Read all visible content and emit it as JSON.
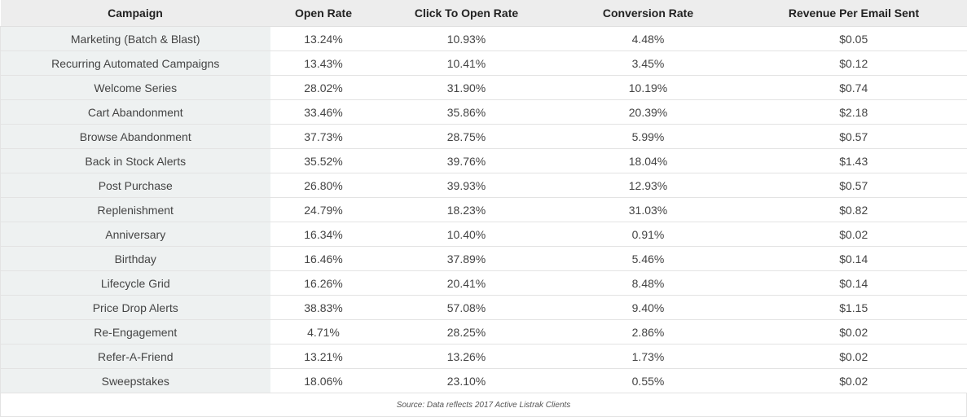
{
  "table": {
    "headers": [
      "Campaign",
      "Open Rate",
      "Click To Open Rate",
      "Conversion Rate",
      "Revenue Per Email Sent"
    ],
    "rows": [
      [
        "Marketing (Batch & Blast)",
        "13.24%",
        "10.93%",
        "4.48%",
        "$0.05"
      ],
      [
        "Recurring Automated Campaigns",
        "13.43%",
        "10.41%",
        "3.45%",
        "$0.12"
      ],
      [
        "Welcome Series",
        "28.02%",
        "31.90%",
        "10.19%",
        "$0.74"
      ],
      [
        "Cart Abandonment",
        "33.46%",
        "35.86%",
        "20.39%",
        "$2.18"
      ],
      [
        "Browse Abandonment",
        "37.73%",
        "28.75%",
        "5.99%",
        "$0.57"
      ],
      [
        "Back in Stock Alerts",
        "35.52%",
        "39.76%",
        "18.04%",
        "$1.43"
      ],
      [
        "Post Purchase",
        "26.80%",
        "39.93%",
        "12.93%",
        "$0.57"
      ],
      [
        "Replenishment",
        "24.79%",
        "18.23%",
        "31.03%",
        "$0.82"
      ],
      [
        "Anniversary",
        "16.34%",
        "10.40%",
        "0.91%",
        "$0.02"
      ],
      [
        "Birthday",
        "16.46%",
        "37.89%",
        "5.46%",
        "$0.14"
      ],
      [
        "Lifecycle Grid",
        "16.26%",
        "20.41%",
        "8.48%",
        "$0.14"
      ],
      [
        "Price Drop Alerts",
        "38.83%",
        "57.08%",
        "9.40%",
        "$1.15"
      ],
      [
        "Re-Engagement",
        "4.71%",
        "28.25%",
        "2.86%",
        "$0.02"
      ],
      [
        "Refer-A-Friend",
        "13.21%",
        "13.26%",
        "1.73%",
        "$0.02"
      ],
      [
        "Sweepstakes",
        "18.06%",
        "23.10%",
        "0.55%",
        "$0.02"
      ]
    ]
  },
  "source_note": "Source: Data reflects 2017 Active Listrak Clients"
}
